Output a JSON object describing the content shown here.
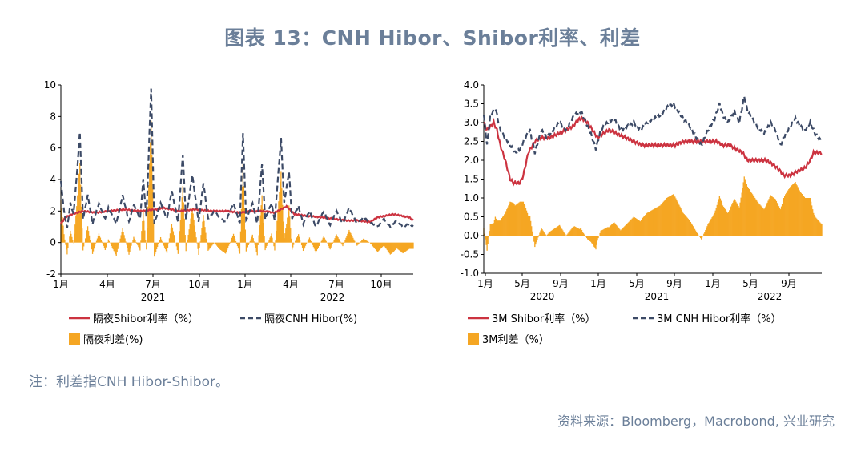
{
  "title": "图表 13：CNH Hibor、Shibor利率、利差",
  "note": "注：利差指CNH Hibor-Shibor。",
  "source": "资料来源：Bloomberg，Macrobond, 兴业研究",
  "colors": {
    "shibor": "#cc3340",
    "hibor": "#3c4a66",
    "spread": "#f5a623",
    "axis": "#000000"
  },
  "chart_data": [
    {
      "type": "line",
      "name": "overnight",
      "ylim": [
        -2,
        10
      ],
      "yticks": [
        "10",
        "8",
        "6",
        "4",
        "2",
        "0",
        "-2"
      ],
      "x_months": [
        "1月",
        "4月",
        "7月",
        "10月",
        "1月",
        "4月",
        "7月",
        "10月"
      ],
      "x_years": [
        "2021",
        "2022"
      ],
      "legend": [
        "隔夜Shibor利率（%）",
        "隔夜CNH Hibor(%)",
        "隔夜利差(%)"
      ],
      "series": [
        {
          "name": "隔夜Shibor利率（%）",
          "kind": "line",
          "style": "solid",
          "anchors": [
            [
              0,
              1.2
            ],
            [
              6,
              1.6
            ],
            [
              14,
              1.8
            ],
            [
              28,
              2.0
            ],
            [
              44,
              1.9
            ],
            [
              60,
              2.0
            ],
            [
              80,
              2.1
            ],
            [
              100,
              2.0
            ],
            [
              120,
              2.1
            ],
            [
              130,
              2.2
            ],
            [
              150,
              2.0
            ],
            [
              170,
              2.1
            ],
            [
              190,
              2.0
            ],
            [
              210,
              2.0
            ],
            [
              225,
              1.9
            ],
            [
              240,
              2.0
            ],
            [
              255,
              2.0
            ],
            [
              270,
              1.9
            ],
            [
              285,
              2.3
            ],
            [
              295,
              1.8
            ],
            [
              310,
              1.7
            ],
            [
              330,
              1.6
            ],
            [
              345,
              1.5
            ],
            [
              360,
              1.4
            ],
            [
              375,
              1.4
            ],
            [
              390,
              1.3
            ],
            [
              400,
              1.6
            ],
            [
              410,
              1.7
            ],
            [
              420,
              1.8
            ],
            [
              430,
              1.7
            ],
            [
              440,
              1.6
            ],
            [
              445,
              1.4
            ]
          ]
        },
        {
          "name": "隔夜CNH Hibor(%)",
          "kind": "line",
          "style": "dashed",
          "anchors": [
            [
              0,
              3.9
            ],
            [
              4,
              2.0
            ],
            [
              8,
              0.9
            ],
            [
              12,
              2.5
            ],
            [
              16,
              1.8
            ],
            [
              20,
              4.2
            ],
            [
              24,
              7.0
            ],
            [
              28,
              1.5
            ],
            [
              34,
              3.0
            ],
            [
              40,
              1.2
            ],
            [
              48,
              2.5
            ],
            [
              56,
              1.5
            ],
            [
              60,
              2.2
            ],
            [
              70,
              1.2
            ],
            [
              78,
              3.0
            ],
            [
              86,
              1.3
            ],
            [
              92,
              2.4
            ],
            [
              100,
              1.5
            ],
            [
              104,
              4.0
            ],
            [
              108,
              1.6
            ],
            [
              114,
              9.8
            ],
            [
              118,
              1.2
            ],
            [
              126,
              2.5
            ],
            [
              134,
              1.5
            ],
            [
              140,
              3.3
            ],
            [
              148,
              1.3
            ],
            [
              154,
              5.6
            ],
            [
              158,
              1.5
            ],
            [
              166,
              4.3
            ],
            [
              174,
              1.3
            ],
            [
              180,
              3.8
            ],
            [
              186,
              1.5
            ],
            [
              194,
              2.0
            ],
            [
              200,
              1.6
            ],
            [
              208,
              1.3
            ],
            [
              218,
              2.5
            ],
            [
              226,
              1.2
            ],
            [
              230,
              6.9
            ],
            [
              234,
              1.4
            ],
            [
              242,
              2.5
            ],
            [
              248,
              1.2
            ],
            [
              254,
              5.0
            ],
            [
              258,
              1.5
            ],
            [
              266,
              2.5
            ],
            [
              270,
              1.4
            ],
            [
              278,
              6.6
            ],
            [
              282,
              2.5
            ],
            [
              288,
              4.5
            ],
            [
              292,
              1.5
            ],
            [
              300,
              2.3
            ],
            [
              306,
              1.2
            ],
            [
              314,
              2.0
            ],
            [
              322,
              1.0
            ],
            [
              332,
              2.0
            ],
            [
              340,
              1.1
            ],
            [
              348,
              2.0
            ],
            [
              356,
              1.2
            ],
            [
              364,
              2.2
            ],
            [
              368,
              1.8
            ],
            [
              374,
              1.2
            ],
            [
              382,
              1.6
            ],
            [
              390,
              1.3
            ],
            [
              400,
              1.0
            ],
            [
              408,
              1.5
            ],
            [
              416,
              1.0
            ],
            [
              424,
              1.4
            ],
            [
              432,
              1.0
            ],
            [
              440,
              1.2
            ],
            [
              445,
              1.0
            ]
          ]
        }
      ]
    },
    {
      "type": "line",
      "name": "3m",
      "ylim": [
        -1.0,
        4.0
      ],
      "yticks": [
        "4.0",
        "3.5",
        "3.0",
        "2.5",
        "2.0",
        "1.5",
        "1.0",
        "0.5",
        "0.0",
        "-0.5",
        "-1.0"
      ],
      "x_months": [
        "1月",
        "5月",
        "9月",
        "1月",
        "5月",
        "9月",
        "1月",
        "5月",
        "9月"
      ],
      "x_years": [
        "2020",
        "2021",
        "2022"
      ],
      "legend": [
        "3M Shibor利率（%）",
        "3M CNH Hibor利率（%）",
        "3M利差（%）"
      ],
      "series": [
        {
          "name": "3M Shibor利率（%）",
          "kind": "line",
          "style": "solid",
          "anchors": [
            [
              0,
              3.0
            ],
            [
              4,
              2.8
            ],
            [
              8,
              2.9
            ],
            [
              12,
              3.0
            ],
            [
              16,
              2.8
            ],
            [
              20,
              2.4
            ],
            [
              26,
              2.0
            ],
            [
              32,
              1.5
            ],
            [
              36,
              1.4
            ],
            [
              44,
              1.4
            ],
            [
              48,
              1.6
            ],
            [
              54,
              2.2
            ],
            [
              62,
              2.5
            ],
            [
              70,
              2.6
            ],
            [
              80,
              2.6
            ],
            [
              90,
              2.7
            ],
            [
              100,
              2.8
            ],
            [
              108,
              2.9
            ],
            [
              116,
              3.1
            ],
            [
              120,
              3.1
            ],
            [
              126,
              3.0
            ],
            [
              132,
              2.8
            ],
            [
              138,
              2.6
            ],
            [
              144,
              2.7
            ],
            [
              152,
              2.8
            ],
            [
              162,
              2.7
            ],
            [
              172,
              2.6
            ],
            [
              182,
              2.5
            ],
            [
              192,
              2.4
            ],
            [
              202,
              2.4
            ],
            [
              212,
              2.4
            ],
            [
              222,
              2.4
            ],
            [
              232,
              2.4
            ],
            [
              242,
              2.5
            ],
            [
              252,
              2.5
            ],
            [
              262,
              2.5
            ],
            [
              272,
              2.5
            ],
            [
              282,
              2.5
            ],
            [
              290,
              2.4
            ],
            [
              298,
              2.4
            ],
            [
              306,
              2.3
            ],
            [
              314,
              2.2
            ],
            [
              320,
              2.0
            ],
            [
              326,
              2.0
            ],
            [
              334,
              2.0
            ],
            [
              342,
              2.0
            ],
            [
              350,
              1.9
            ],
            [
              356,
              1.8
            ],
            [
              364,
              1.6
            ],
            [
              372,
              1.6
            ],
            [
              380,
              1.7
            ],
            [
              390,
              1.8
            ],
            [
              396,
              2.0
            ],
            [
              400,
              2.2
            ],
            [
              406,
              2.2
            ],
            [
              410,
              2.2
            ]
          ]
        },
        {
          "name": "3M CNH Hibor利率（%）",
          "kind": "line",
          "style": "dashed",
          "anchors": [
            [
              0,
              3.2
            ],
            [
              4,
              2.4
            ],
            [
              8,
              3.2
            ],
            [
              14,
              3.4
            ],
            [
              20,
              2.8
            ],
            [
              26,
              2.6
            ],
            [
              32,
              2.4
            ],
            [
              38,
              2.2
            ],
            [
              44,
              2.3
            ],
            [
              50,
              2.6
            ],
            [
              56,
              2.8
            ],
            [
              62,
              2.2
            ],
            [
              70,
              2.8
            ],
            [
              76,
              2.6
            ],
            [
              84,
              2.8
            ],
            [
              92,
              3.0
            ],
            [
              100,
              2.8
            ],
            [
              110,
              3.2
            ],
            [
              118,
              3.3
            ],
            [
              124,
              3.0
            ],
            [
              130,
              2.7
            ],
            [
              136,
              2.3
            ],
            [
              142,
              2.8
            ],
            [
              150,
              3.0
            ],
            [
              158,
              3.1
            ],
            [
              166,
              2.8
            ],
            [
              174,
              2.9
            ],
            [
              182,
              3.0
            ],
            [
              190,
              2.8
            ],
            [
              198,
              3.0
            ],
            [
              206,
              3.1
            ],
            [
              214,
              3.2
            ],
            [
              222,
              3.4
            ],
            [
              230,
              3.5
            ],
            [
              236,
              3.3
            ],
            [
              242,
              3.1
            ],
            [
              250,
              2.9
            ],
            [
              258,
              2.6
            ],
            [
              264,
              2.4
            ],
            [
              272,
              2.8
            ],
            [
              280,
              3.1
            ],
            [
              286,
              3.5
            ],
            [
              290,
              3.2
            ],
            [
              296,
              3.0
            ],
            [
              304,
              3.3
            ],
            [
              310,
              3.0
            ],
            [
              316,
              3.7
            ],
            [
              320,
              3.3
            ],
            [
              326,
              3.1
            ],
            [
              332,
              2.9
            ],
            [
              340,
              2.7
            ],
            [
              348,
              3.0
            ],
            [
              354,
              2.8
            ],
            [
              360,
              2.4
            ],
            [
              366,
              2.7
            ],
            [
              372,
              2.9
            ],
            [
              378,
              3.1
            ],
            [
              384,
              2.9
            ],
            [
              390,
              2.8
            ],
            [
              396,
              3.0
            ],
            [
              402,
              2.7
            ],
            [
              410,
              2.5
            ]
          ]
        }
      ]
    }
  ]
}
